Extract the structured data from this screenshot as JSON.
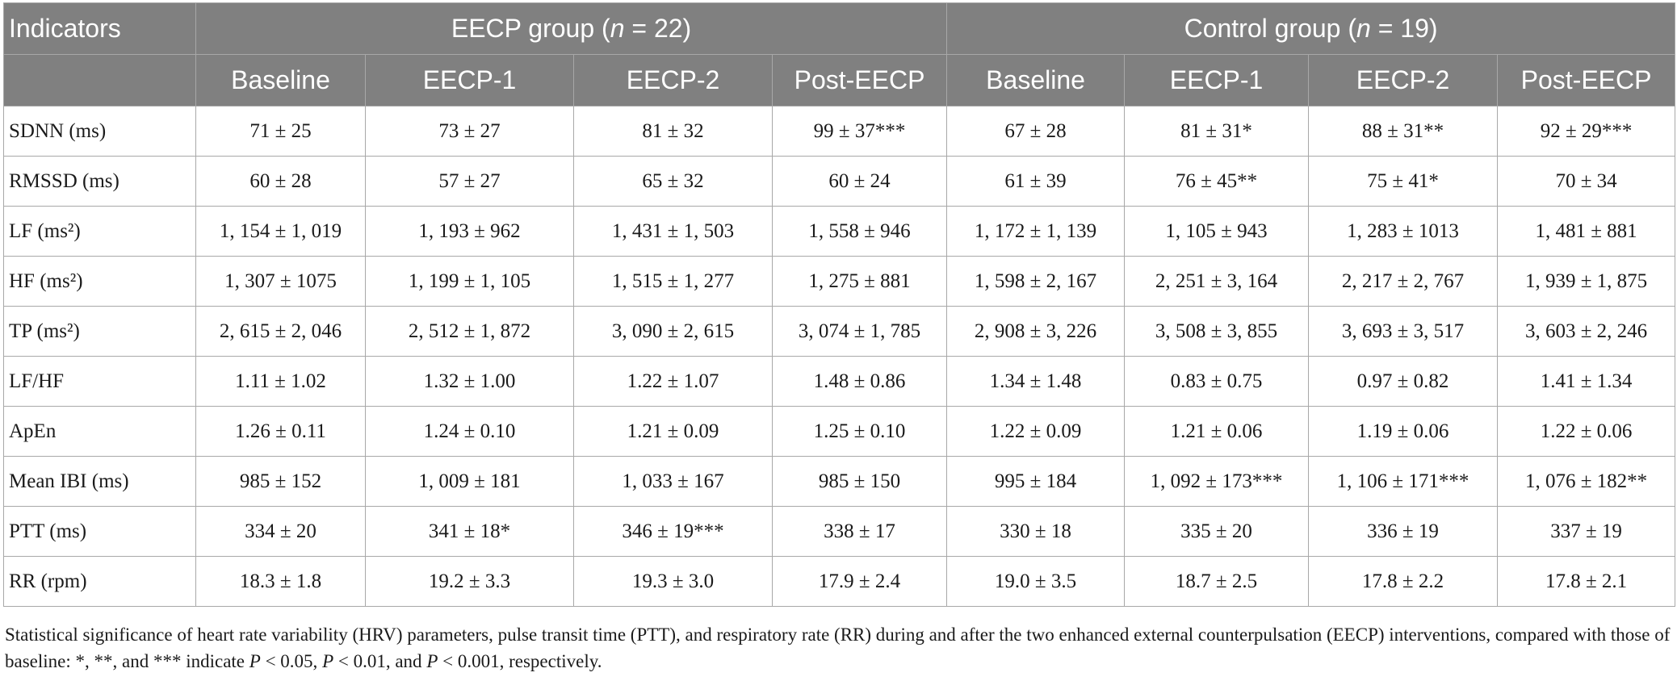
{
  "table": {
    "indicators_label": "Indicators",
    "group_eecp": "EECP group (n = 22)",
    "group_control": "Control group (n = 19)",
    "subheaders": [
      "Baseline",
      "EECP-1",
      "EECP-2",
      "Post-EECP",
      "Baseline",
      "EECP-1",
      "EECP-2",
      "Post-EECP"
    ],
    "rows": [
      {
        "label": "SDNN (ms)",
        "cells": [
          "71 ± 25",
          "73 ± 27",
          "81 ± 32",
          "99 ± 37***",
          "67 ± 28",
          "81 ± 31*",
          "88 ± 31**",
          "92 ± 29***"
        ]
      },
      {
        "label": "RMSSD (ms)",
        "cells": [
          "60 ± 28",
          "57 ± 27",
          "65 ± 32",
          "60 ± 24",
          "61 ± 39",
          "76 ± 45**",
          "75 ± 41*",
          "70 ± 34"
        ]
      },
      {
        "label": "LF (ms²)",
        "cells": [
          "1, 154 ± 1, 019",
          "1, 193 ± 962",
          "1, 431 ± 1, 503",
          "1, 558 ± 946",
          "1, 172 ± 1, 139",
          "1, 105 ± 943",
          "1, 283 ± 1013",
          "1, 481 ± 881"
        ]
      },
      {
        "label": "HF (ms²)",
        "cells": [
          "1, 307 ± 1075",
          "1, 199 ± 1, 105",
          "1, 515 ± 1, 277",
          "1, 275 ± 881",
          "1, 598 ± 2, 167",
          "2, 251 ± 3, 164",
          "2, 217 ± 2, 767",
          "1, 939 ± 1, 875"
        ]
      },
      {
        "label": "TP (ms²)",
        "cells": [
          "2, 615 ± 2, 046",
          "2, 512 ± 1, 872",
          "3, 090 ± 2, 615",
          "3, 074 ± 1, 785",
          "2, 908 ± 3, 226",
          "3, 508 ± 3, 855",
          "3, 693 ± 3, 517",
          "3, 603 ± 2, 246"
        ]
      },
      {
        "label": "LF/HF",
        "cells": [
          "1.11 ± 1.02",
          "1.32 ± 1.00",
          "1.22 ± 1.07",
          "1.48 ± 0.86",
          "1.34 ± 1.48",
          "0.83 ± 0.75",
          "0.97 ± 0.82",
          "1.41 ± 1.34"
        ]
      },
      {
        "label": "ApEn",
        "cells": [
          "1.26 ± 0.11",
          "1.24 ± 0.10",
          "1.21 ± 0.09",
          "1.25 ± 0.10",
          "1.22 ± 0.09",
          "1.21 ± 0.06",
          "1.19 ± 0.06",
          "1.22 ± 0.06"
        ]
      },
      {
        "label": "Mean IBI (ms)",
        "cells": [
          "985 ± 152",
          "1, 009 ± 181",
          "1, 033 ± 167",
          "985 ± 150",
          "995 ± 184",
          "1, 092 ± 173***",
          "1, 106 ± 171***",
          "1, 076 ± 182**"
        ]
      },
      {
        "label": "PTT (ms)",
        "cells": [
          "334 ± 20",
          "341 ± 18*",
          "346 ± 19***",
          "338 ± 17",
          "330 ± 18",
          "335 ± 20",
          "336 ± 19",
          "337 ± 19"
        ]
      },
      {
        "label": "RR (rpm)",
        "cells": [
          "18.3 ± 1.8",
          "19.2 ± 3.3",
          "19.3 ± 3.0",
          "17.9 ± 2.4",
          "19.0 ± 3.5",
          "18.7 ± 2.5",
          "17.8 ± 2.2",
          "17.8 ± 2.1"
        ]
      }
    ]
  },
  "footnote": "Statistical significance of heart rate variability (HRV) parameters, pulse transit time (PTT), and respiratory rate (RR) during and after the two enhanced external counterpulsation (EECP) interventions, compared with those of baseline: *, **, and *** indicate P < 0.05, P < 0.01, and P < 0.001, respectively."
}
